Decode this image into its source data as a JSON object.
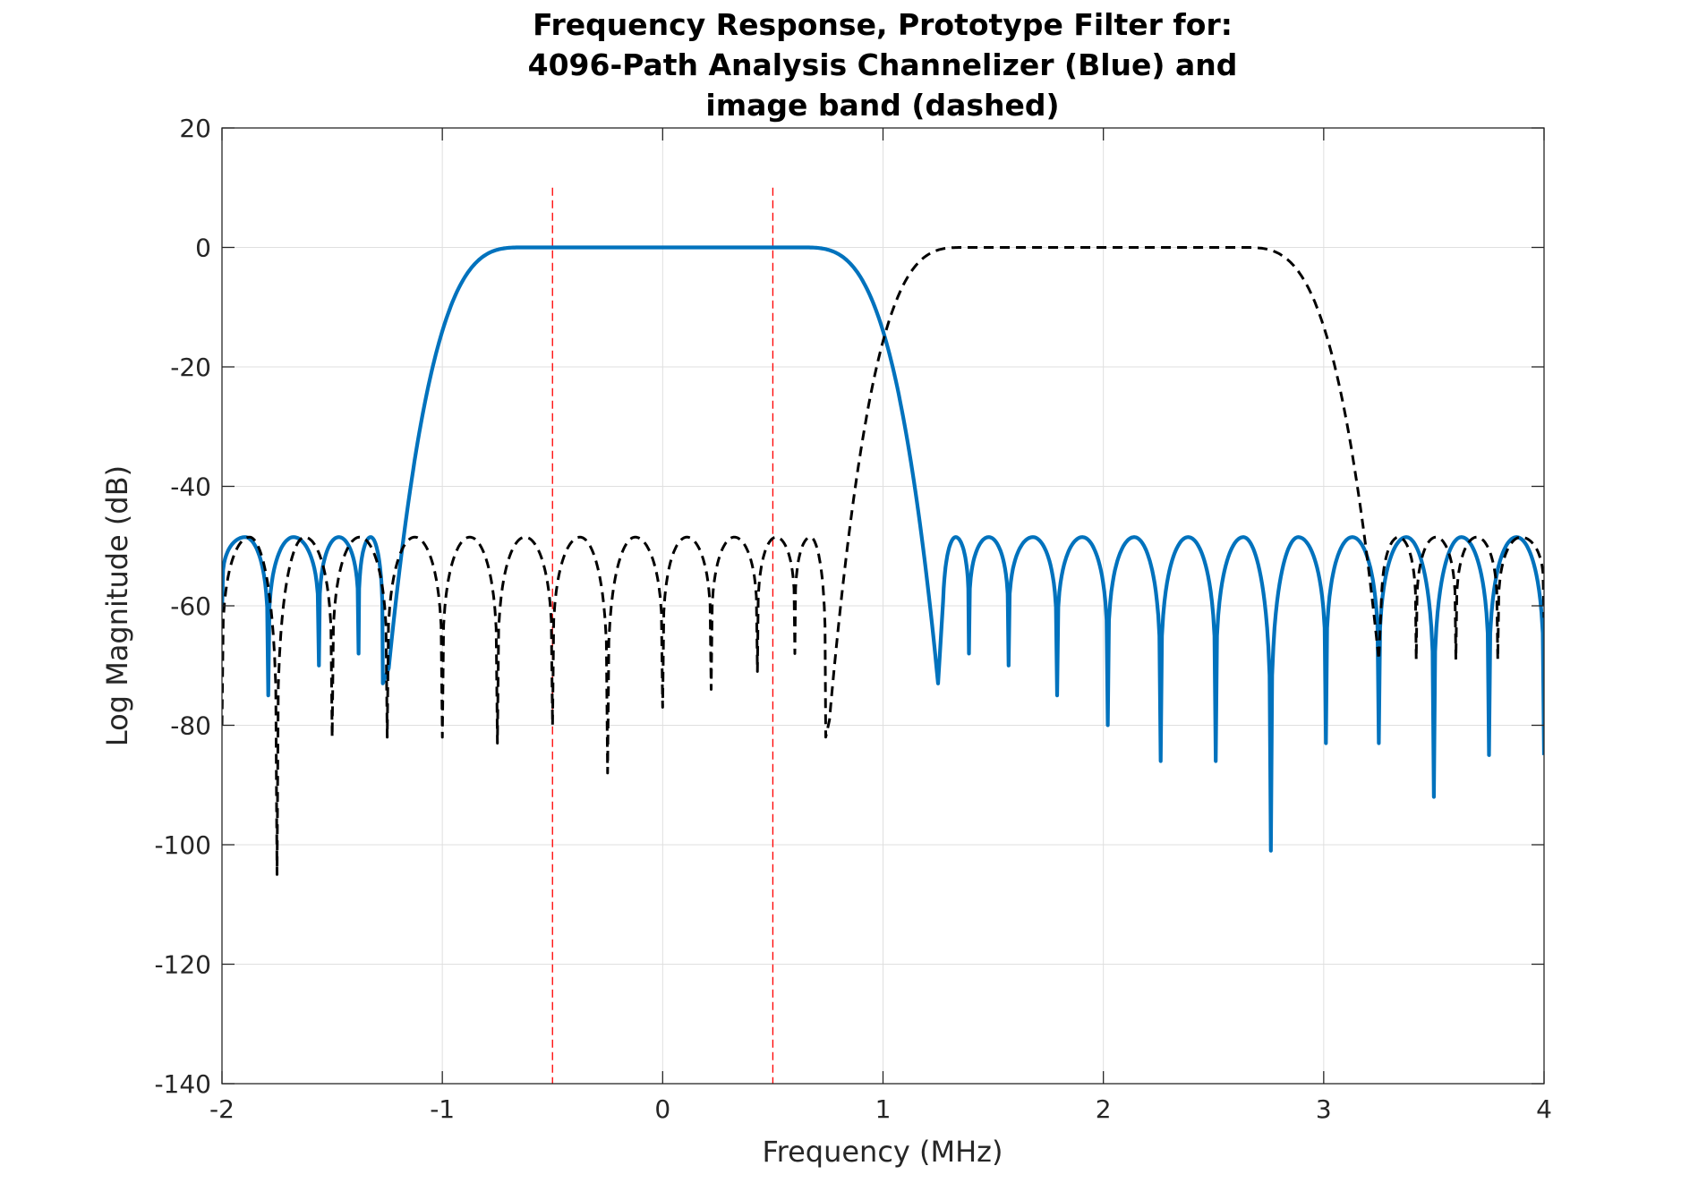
{
  "chart_data": {
    "type": "line",
    "title_lines": [
      "Frequency Response, Prototype Filter for:",
      "4096-Path Analysis Channelizer (Blue) and",
      "image band (dashed)"
    ],
    "xlabel": "Frequency (MHz)",
    "ylabel": "Log Magnitude (dB)",
    "xlim": [
      -2,
      4
    ],
    "ylim": [
      -140,
      20
    ],
    "xticks": [
      -2,
      -1,
      0,
      1,
      2,
      3,
      4
    ],
    "yticks": [
      -140,
      -120,
      -100,
      -80,
      -60,
      -40,
      -20,
      0,
      20
    ],
    "xtick_labels": [
      "-2",
      "-1",
      "0",
      "1",
      "2",
      "3",
      "4"
    ],
    "ytick_labels": [
      "-140",
      "-120",
      "-100",
      "-80",
      "-60",
      "-40",
      "-20",
      "0",
      "20"
    ],
    "grid": true,
    "series": [
      {
        "style": "solid",
        "color": "#0072BD",
        "passband": [
          -1.25,
          1.25
        ],
        "null_depths": [
          [
            -2.0,
            -61
          ],
          [
            -1.79,
            -75
          ],
          [
            -1.56,
            -70
          ],
          [
            -1.38,
            -68
          ],
          [
            -1.27,
            -73
          ],
          [
            1.27,
            -73
          ],
          [
            1.39,
            -68
          ],
          [
            1.57,
            -70
          ],
          [
            1.79,
            -75
          ],
          [
            2.02,
            -80
          ],
          [
            2.26,
            -86
          ],
          [
            2.51,
            -86
          ],
          [
            2.76,
            -101
          ],
          [
            3.01,
            -83
          ],
          [
            3.25,
            -83
          ],
          [
            3.5,
            -92
          ],
          [
            3.75,
            -85
          ],
          [
            4.0,
            -85
          ]
        ],
        "sidelobe_peak_db": -48.5
      },
      {
        "style": "dashed",
        "color": "#000000",
        "passband": [
          0.75,
          3.25
        ],
        "null_depths": [
          [
            -2.0,
            -80
          ],
          [
            -1.75,
            -105
          ],
          [
            -1.5,
            -82
          ],
          [
            -1.25,
            -82
          ],
          [
            -1.0,
            -82
          ],
          [
            -0.75,
            -83
          ],
          [
            -0.5,
            -80
          ],
          [
            -0.25,
            -88
          ],
          [
            0.0,
            -77
          ],
          [
            0.22,
            -74
          ],
          [
            0.43,
            -71
          ],
          [
            0.6,
            -68
          ],
          [
            0.74,
            -82
          ],
          [
            3.26,
            -69
          ],
          [
            3.42,
            -69
          ],
          [
            3.6,
            -69
          ],
          [
            3.79,
            -69
          ],
          [
            4.0,
            -62
          ]
        ],
        "sidelobe_peak_db": -48.5
      }
    ],
    "reference_lines": [
      {
        "x": -0.5,
        "y_range": [
          -140,
          10
        ],
        "color": "#FF0000",
        "style": "dashed"
      },
      {
        "x": 0.5,
        "y_range": [
          -140,
          10
        ],
        "color": "#FF0000",
        "style": "dashed"
      }
    ]
  }
}
